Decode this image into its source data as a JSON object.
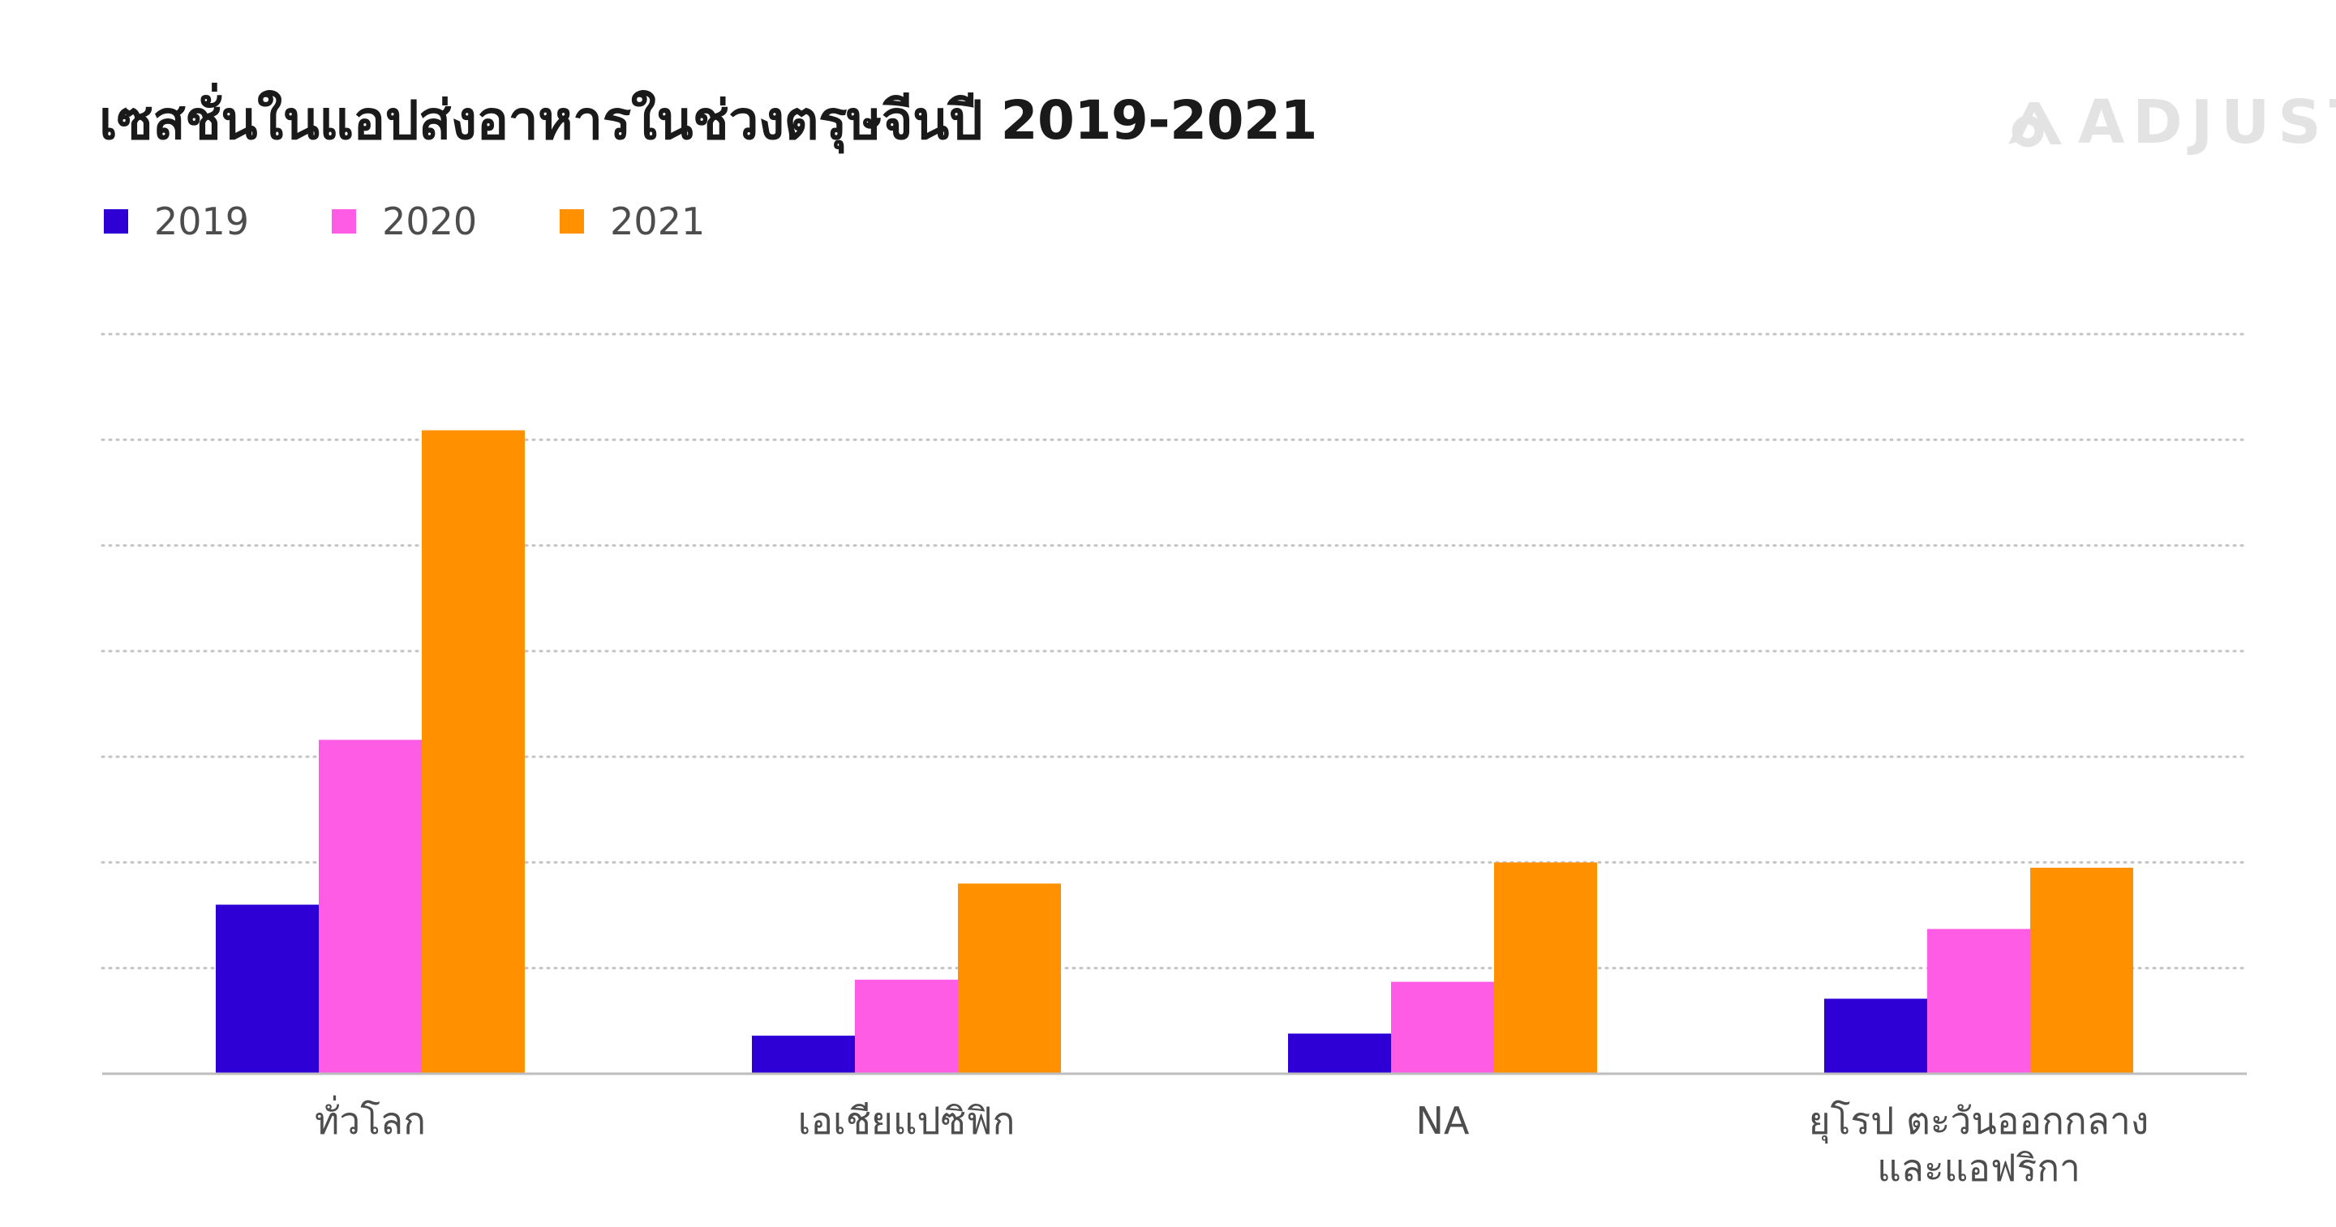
{
  "title": "เซสชั่นในแอปส่งอาหารในช่วงตรุษจีนปี 2019-2021",
  "logo": {
    "text": "ADJUST",
    "color": "#e3e3e3"
  },
  "chart_data": {
    "type": "bar",
    "title": "เซสชั่นในแอปส่งอาหารในช่วงตรุษจีนปี 2019-2021",
    "categories": [
      "ทั่วโลก",
      "เอเชียแปซิฟิก",
      "NA",
      "ยุโรป ตะวันออกกลาง\nและแอฟริกา"
    ],
    "series": [
      {
        "name": "2019",
        "color": "#2e00d6",
        "values": [
          1.6,
          0.36,
          0.38,
          0.71
        ]
      },
      {
        "name": "2020",
        "color": "#ff5ce5",
        "values": [
          3.16,
          0.89,
          0.87,
          1.37
        ]
      },
      {
        "name": "2021",
        "color": "#ff9100",
        "values": [
          6.09,
          1.8,
          2.0,
          1.95
        ]
      }
    ],
    "ylim": [
      0,
      7
    ],
    "grid": true,
    "grid_style": "dotted",
    "legend_position": "top-left",
    "show_y_tick_labels": false
  }
}
